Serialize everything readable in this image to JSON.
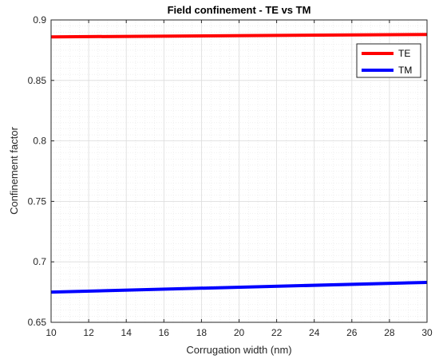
{
  "chart_data": {
    "type": "line",
    "title": "Field confinement - TE vs TM",
    "xlabel": "Corrugation width (nm)",
    "ylabel": "Confinement factor",
    "xlim": [
      10,
      30
    ],
    "ylim": [
      0.65,
      0.9
    ],
    "xticks": [
      10,
      12,
      14,
      16,
      18,
      20,
      22,
      24,
      26,
      28,
      30
    ],
    "yticks": [
      0.65,
      0.7,
      0.75,
      0.8,
      0.85,
      0.9
    ],
    "yticklabels": [
      "0.65",
      "0.7",
      "0.75",
      "0.8",
      "0.85",
      "0.9"
    ],
    "grid": true,
    "minor_grid": true,
    "legend_position": "top-right",
    "series": [
      {
        "name": "TE",
        "color": "#ff0000",
        "x": [
          10,
          30
        ],
        "y": [
          0.886,
          0.888
        ]
      },
      {
        "name": "TM",
        "color": "#0000ff",
        "x": [
          10,
          30
        ],
        "y": [
          0.675,
          0.683
        ]
      }
    ]
  }
}
